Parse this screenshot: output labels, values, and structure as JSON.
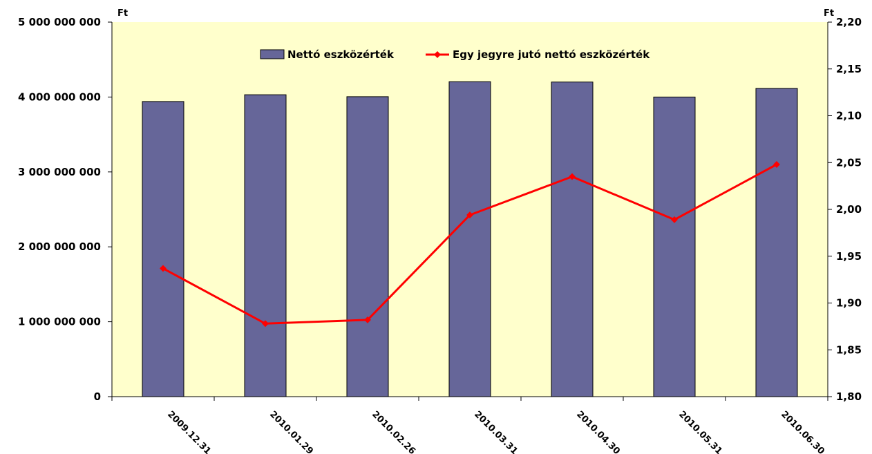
{
  "chart_data": {
    "type": "bar",
    "categories": [
      "2009.12.31",
      "2010.01.29",
      "2010.02.26",
      "2010.03.31",
      "2010.04.30",
      "2010.05.31",
      "2010.06.30"
    ],
    "series": [
      {
        "name": "Nettó eszközérték",
        "type": "bar",
        "axis": "left",
        "color": "#666699",
        "values": [
          3940000000,
          4030000000,
          4005000000,
          4205000000,
          4200000000,
          4000000000,
          4115000000
        ]
      },
      {
        "name": "Egy jegyre jutó nettó eszközérték",
        "type": "line",
        "axis": "right",
        "color": "#ff0000",
        "values": [
          1.937,
          1.878,
          1.882,
          1.994,
          2.035,
          1.989,
          2.048
        ]
      }
    ],
    "left_axis": {
      "unit": "Ft",
      "ylim": [
        0,
        5000000000
      ],
      "ticks": [
        0,
        1000000000,
        2000000000,
        3000000000,
        4000000000,
        5000000000
      ],
      "tick_labels": [
        "0",
        "1 000 000 000",
        "2 000 000 000",
        "3 000 000 000",
        "4 000 000 000",
        "5 000 000 000"
      ]
    },
    "right_axis": {
      "unit": "Ft",
      "ylim": [
        1.8,
        2.2
      ],
      "ticks": [
        1.8,
        1.85,
        1.9,
        1.95,
        2.0,
        2.05,
        2.1,
        2.15,
        2.2
      ],
      "tick_labels": [
        "1,80",
        "1,85",
        "1,90",
        "1,95",
        "2,00",
        "2,05",
        "2,10",
        "2,15",
        "2,20"
      ]
    },
    "grid": false,
    "legend_position": "top-center",
    "plot_background": "#ffffcc"
  }
}
